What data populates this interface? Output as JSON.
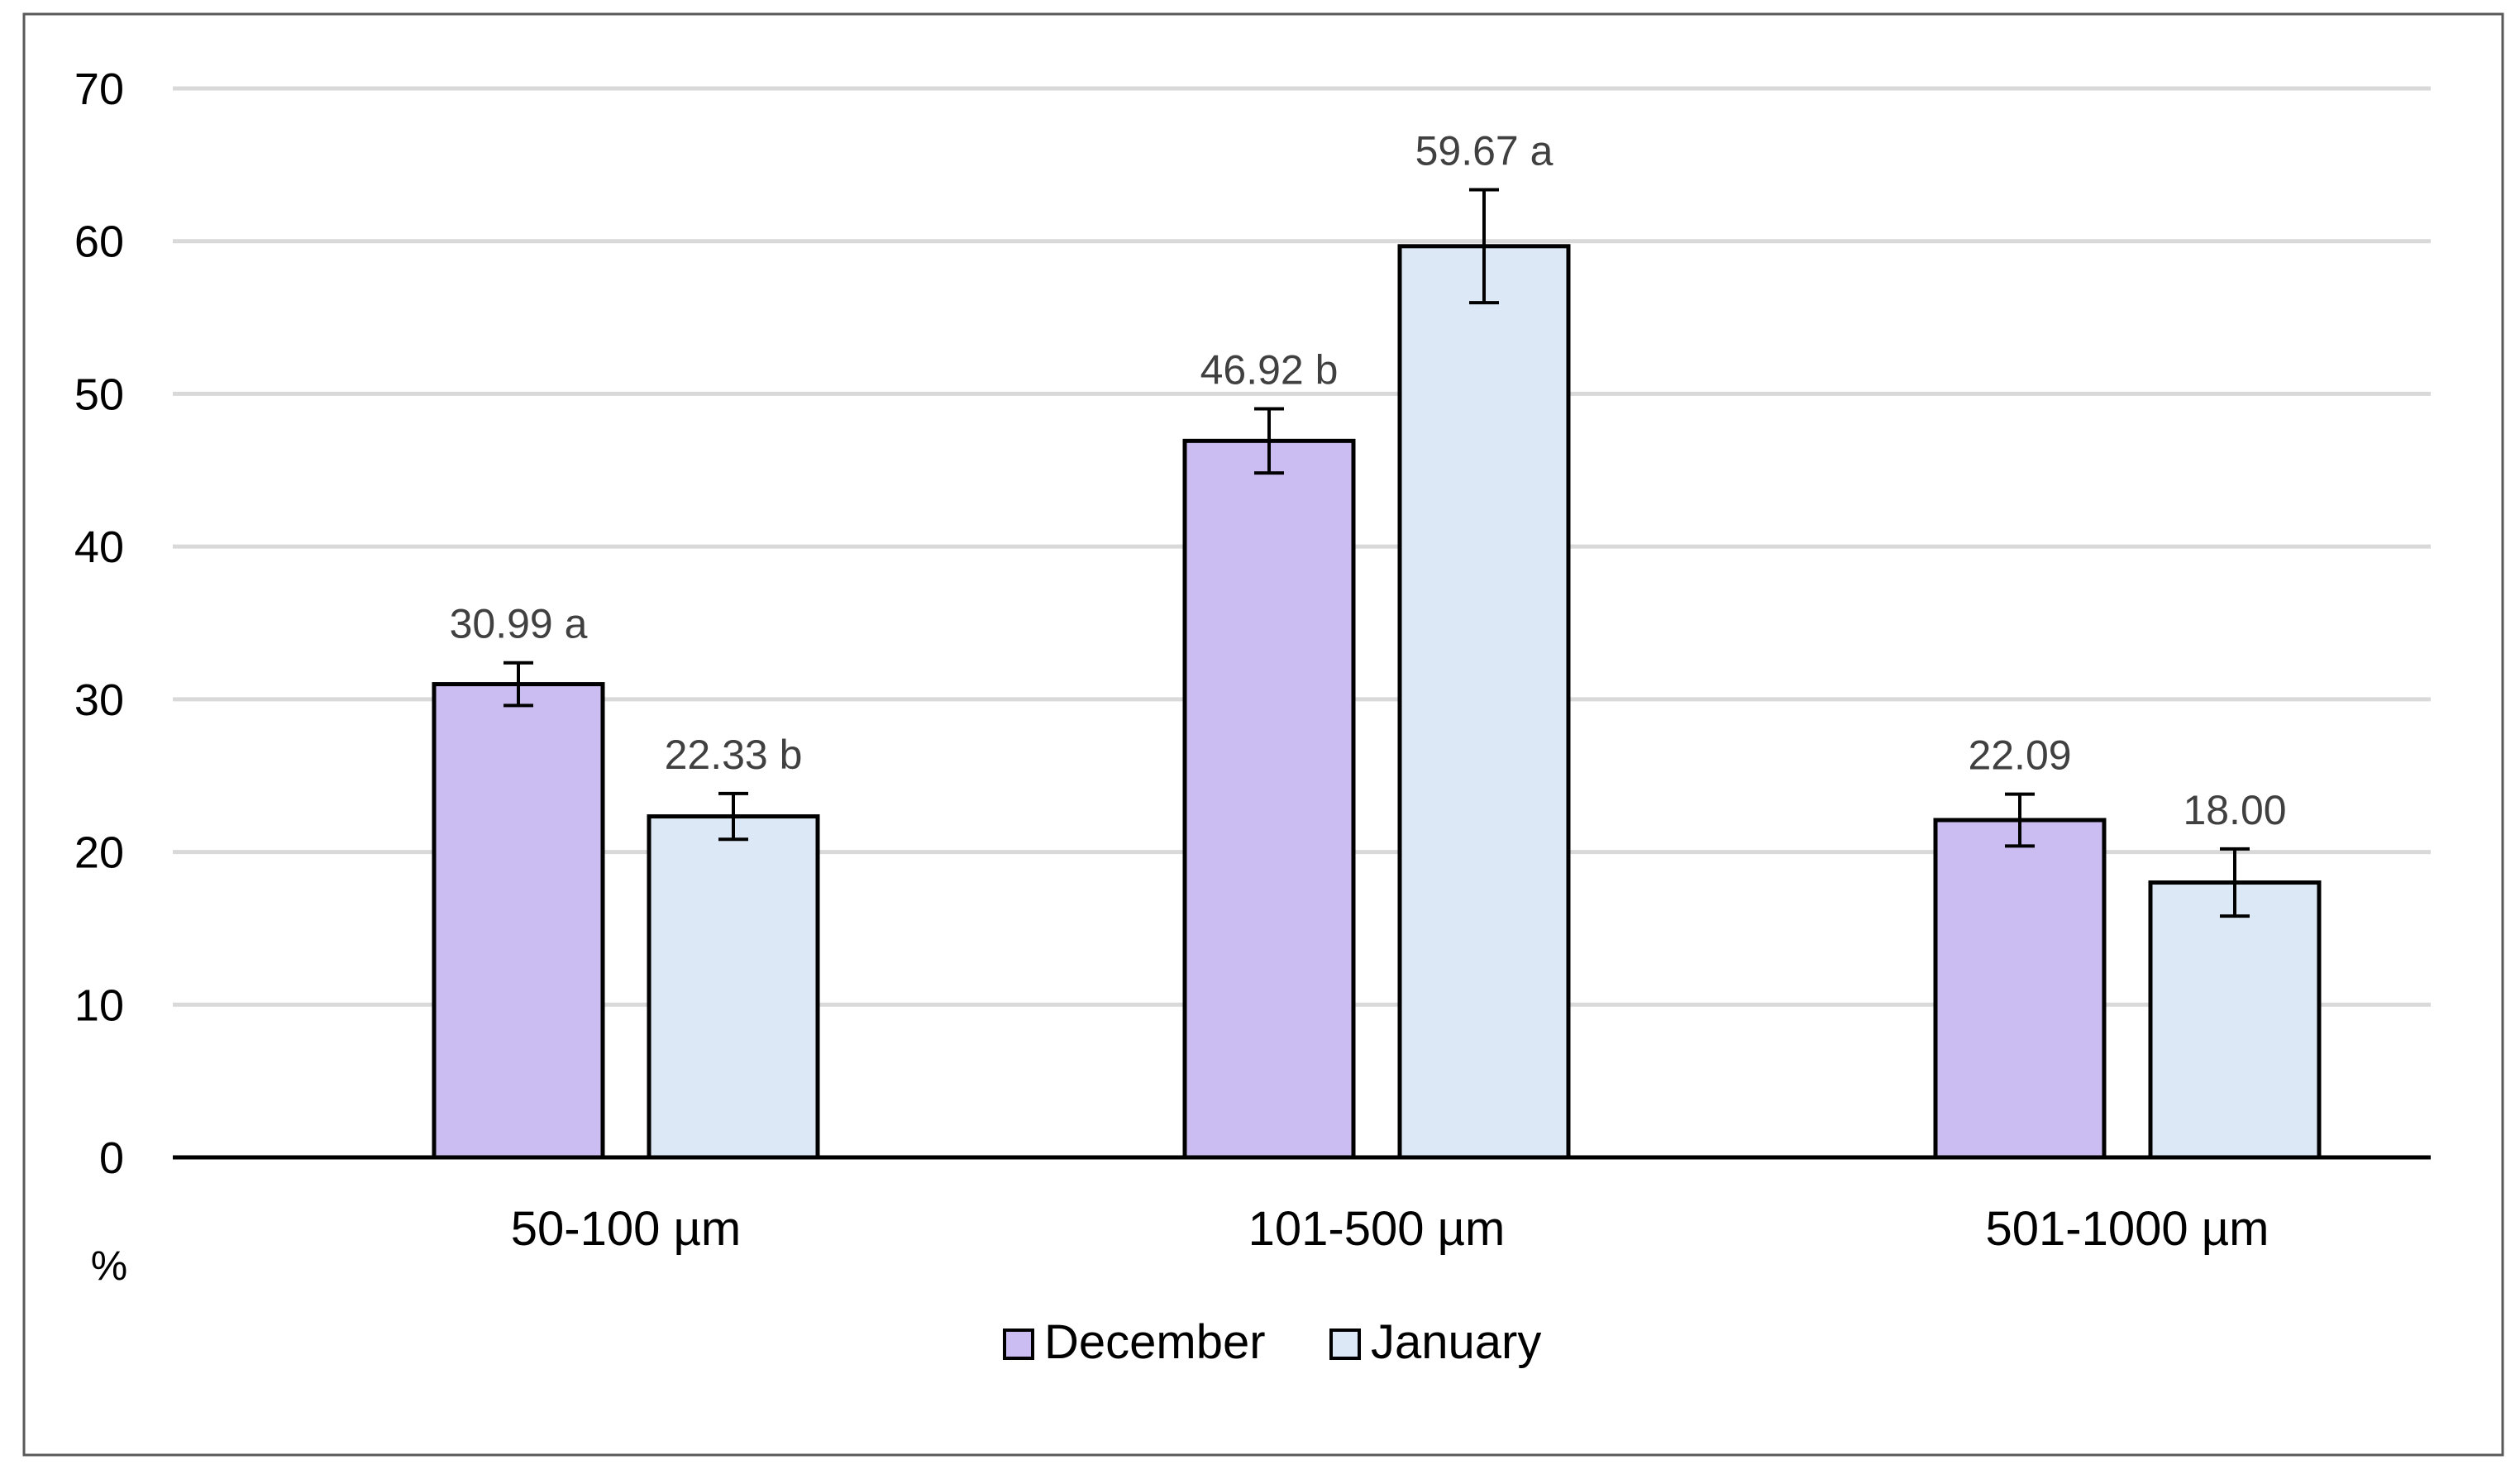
{
  "chart_data": {
    "type": "bar",
    "categories": [
      "50-100 µm",
      "101-500 µm",
      "501-1000 µm"
    ],
    "series": [
      {
        "name": "December",
        "color": "#cbbdf2",
        "values": [
          30.99,
          46.92,
          22.09
        ],
        "errors": [
          1.4,
          2.1,
          1.7
        ],
        "labels": [
          "30.99 a",
          "46.92 b",
          "22.09"
        ]
      },
      {
        "name": "January",
        "color": "#dce8f5",
        "values": [
          22.33,
          59.67,
          18.0
        ],
        "errors": [
          1.5,
          3.7,
          2.2
        ],
        "labels": [
          "22.33 b",
          "59.67 a",
          "18.00"
        ]
      }
    ],
    "ylabel": "%",
    "ylim": [
      0,
      70
    ],
    "yticks": [
      "0",
      "10",
      "20",
      "30",
      "40",
      "50",
      "60",
      "70"
    ],
    "grid": true,
    "legend": "bottom-center"
  }
}
